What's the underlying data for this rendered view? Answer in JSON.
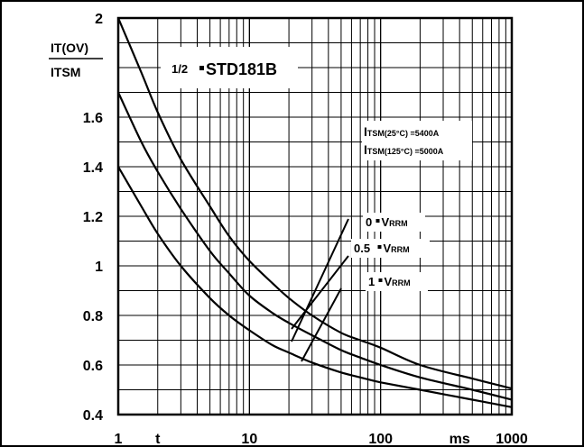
{
  "chart_data": {
    "type": "line",
    "x_scale": "log",
    "xlim": [
      1,
      1000
    ],
    "ylim": [
      0.4,
      2
    ],
    "x_tick_labels": [
      "1",
      "t",
      "10",
      "100",
      "ms",
      "1000"
    ],
    "y_tick_labels": [
      "2",
      "1.6",
      "1.4",
      "1.2",
      "1",
      "0.8",
      "0.6",
      "0.4"
    ],
    "ylabel_numerator": "IT(OV)",
    "ylabel_denominator": "ITSM",
    "device": {
      "fraction": "1/2",
      "name": "STD181B"
    },
    "ratings": [
      {
        "symbol": "I",
        "sub": "TSM(25°C)",
        "value": "=5400A"
      },
      {
        "symbol": "I",
        "sub": "TSM(125°C)",
        "value": "=5000A"
      }
    ],
    "series": [
      {
        "name": "0 • VRRM",
        "label_prefix": "0",
        "label_symbol": "V",
        "label_sub": "RRM",
        "x": [
          1,
          1.5,
          2,
          3,
          5,
          7,
          10,
          15,
          20,
          30,
          50,
          70,
          100,
          200,
          500,
          1000
        ],
        "y": [
          2.0,
          1.78,
          1.62,
          1.43,
          1.24,
          1.12,
          1.02,
          0.93,
          0.87,
          0.8,
          0.73,
          0.7,
          0.67,
          0.6,
          0.545,
          0.505
        ]
      },
      {
        "name": "0.5 • VRRM",
        "label_prefix": "0.5",
        "label_symbol": "V",
        "label_sub": "RRM",
        "x": [
          1,
          1.5,
          2,
          3,
          5,
          7,
          10,
          15,
          20,
          30,
          50,
          70,
          100,
          200,
          500,
          1000
        ],
        "y": [
          1.7,
          1.5,
          1.38,
          1.23,
          1.06,
          0.97,
          0.88,
          0.81,
          0.77,
          0.72,
          0.66,
          0.63,
          0.6,
          0.55,
          0.5,
          0.46
        ]
      },
      {
        "name": "1 • VRRM",
        "label_prefix": "1",
        "label_symbol": "V",
        "label_sub": "RRM",
        "x": [
          1,
          1.5,
          2,
          3,
          5,
          7,
          10,
          15,
          20,
          30,
          50,
          70,
          100,
          200,
          500,
          1000
        ],
        "y": [
          1.4,
          1.24,
          1.13,
          1.0,
          0.87,
          0.8,
          0.74,
          0.68,
          0.65,
          0.61,
          0.57,
          0.55,
          0.53,
          0.5,
          0.46,
          0.43
        ]
      }
    ],
    "grid": true
  }
}
